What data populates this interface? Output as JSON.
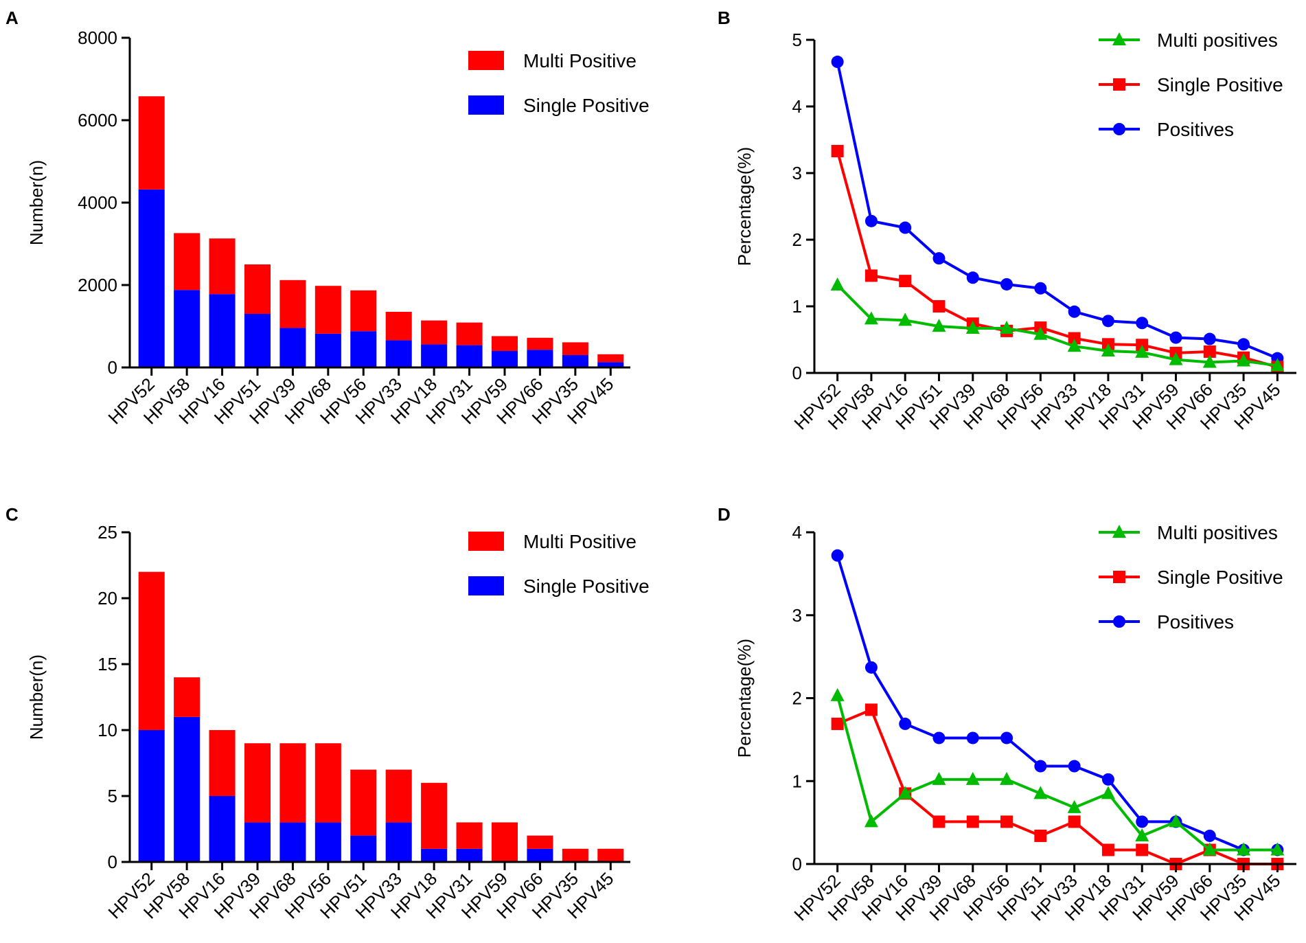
{
  "chart_data": [
    {
      "panel": "A",
      "type": "bar",
      "stacked": true,
      "ylabel": "Number(n)",
      "ylim": [
        0,
        8000
      ],
      "yticks": [
        0,
        2000,
        4000,
        6000,
        8000
      ],
      "categories": [
        "HPV52",
        "HPV58",
        "HPV16",
        "HPV51",
        "HPV39",
        "HPV68",
        "HPV56",
        "HPV33",
        "HPV18",
        "HPV31",
        "HPV59",
        "HPV66",
        "HPV35",
        "HPV45"
      ],
      "series": [
        {
          "name": "Single Positive",
          "color": "#0000ff",
          "values": [
            4320,
            1880,
            1780,
            1300,
            960,
            820,
            880,
            660,
            560,
            540,
            400,
            430,
            300,
            130
          ]
        },
        {
          "name": "Multi Positive",
          "color": "#ff0000",
          "values": [
            2260,
            1380,
            1350,
            1200,
            1160,
            1160,
            990,
            690,
            580,
            550,
            360,
            290,
            310,
            190
          ]
        }
      ],
      "legend": {
        "position": "top-right",
        "order": [
          "Multi Positive",
          "Single Positive"
        ]
      }
    },
    {
      "panel": "B",
      "type": "line",
      "ylabel": "Percentage(%)",
      "ylim": [
        0,
        5
      ],
      "yticks": [
        0,
        1,
        2,
        3,
        4,
        5
      ],
      "categories": [
        "HPV52",
        "HPV58",
        "HPV16",
        "HPV51",
        "HPV39",
        "HPV68",
        "HPV56",
        "HPV33",
        "HPV18",
        "HPV31",
        "HPV59",
        "HPV66",
        "HPV35",
        "HPV45"
      ],
      "series": [
        {
          "name": "Multi positives",
          "color": "#00bb00",
          "marker": "triangle",
          "values": [
            1.32,
            0.81,
            0.79,
            0.7,
            0.67,
            0.67,
            0.58,
            0.4,
            0.33,
            0.31,
            0.2,
            0.16,
            0.18,
            0.11
          ]
        },
        {
          "name": "Single Positive",
          "color": "#ff0000",
          "marker": "square",
          "values": [
            3.33,
            1.46,
            1.38,
            1.0,
            0.74,
            0.63,
            0.68,
            0.52,
            0.43,
            0.42,
            0.3,
            0.32,
            0.23,
            0.09
          ]
        },
        {
          "name": "Positives",
          "color": "#0000ff",
          "marker": "circle",
          "values": [
            4.67,
            2.28,
            2.18,
            1.72,
            1.43,
            1.33,
            1.27,
            0.92,
            0.78,
            0.75,
            0.53,
            0.51,
            0.43,
            0.22
          ]
        }
      ],
      "legend": {
        "position": "top-right",
        "order": [
          "Multi positives",
          "Single Positive",
          "Positives"
        ]
      }
    },
    {
      "panel": "C",
      "type": "bar",
      "stacked": true,
      "ylabel": "Number(n)",
      "ylim": [
        0,
        25
      ],
      "yticks": [
        0,
        5,
        10,
        15,
        20,
        25
      ],
      "categories": [
        "HPV52",
        "HPV58",
        "HPV16",
        "HPV39",
        "HPV68",
        "HPV56",
        "HPV51",
        "HPV33",
        "HPV18",
        "HPV31",
        "HPV59",
        "HPV66",
        "HPV35",
        "HPV45"
      ],
      "series": [
        {
          "name": "Single Positive",
          "color": "#0000ff",
          "values": [
            10,
            11,
            5,
            3,
            3,
            3,
            2,
            3,
            1,
            1,
            0,
            1,
            0,
            0
          ]
        },
        {
          "name": "Multi Positive",
          "color": "#ff0000",
          "values": [
            12,
            3,
            5,
            6,
            6,
            6,
            5,
            4,
            5,
            2,
            3,
            1,
            1,
            1
          ]
        }
      ],
      "legend": {
        "position": "top-right",
        "order": [
          "Multi Positive",
          "Single Positive"
        ]
      }
    },
    {
      "panel": "D",
      "type": "line",
      "ylabel": "Percentage(%)",
      "ylim": [
        0,
        4
      ],
      "yticks": [
        0,
        1,
        2,
        3,
        4
      ],
      "categories": [
        "HPV52",
        "HPV58",
        "HPV16",
        "HPV39",
        "HPV68",
        "HPV56",
        "HPV51",
        "HPV33",
        "HPV18",
        "HPV31",
        "HPV59",
        "HPV66",
        "HPV35",
        "HPV45"
      ],
      "series": [
        {
          "name": "Multi positives",
          "color": "#00bb00",
          "marker": "triangle",
          "values": [
            2.03,
            0.51,
            0.85,
            1.02,
            1.02,
            1.02,
            0.85,
            0.68,
            0.85,
            0.34,
            0.51,
            0.17,
            0.17,
            0.17
          ]
        },
        {
          "name": "Single Positive",
          "color": "#ff0000",
          "marker": "square",
          "values": [
            1.69,
            1.86,
            0.85,
            0.51,
            0.51,
            0.51,
            0.34,
            0.51,
            0.17,
            0.17,
            0,
            0.17,
            0,
            0
          ]
        },
        {
          "name": "Positives",
          "color": "#0000ff",
          "marker": "circle",
          "values": [
            3.72,
            2.37,
            1.69,
            1.52,
            1.52,
            1.52,
            1.18,
            1.18,
            1.02,
            0.51,
            0.51,
            0.34,
            0.17,
            0.17
          ]
        }
      ],
      "legend": {
        "position": "top-right",
        "order": [
          "Multi positives",
          "Single Positive",
          "Positives"
        ]
      }
    }
  ]
}
